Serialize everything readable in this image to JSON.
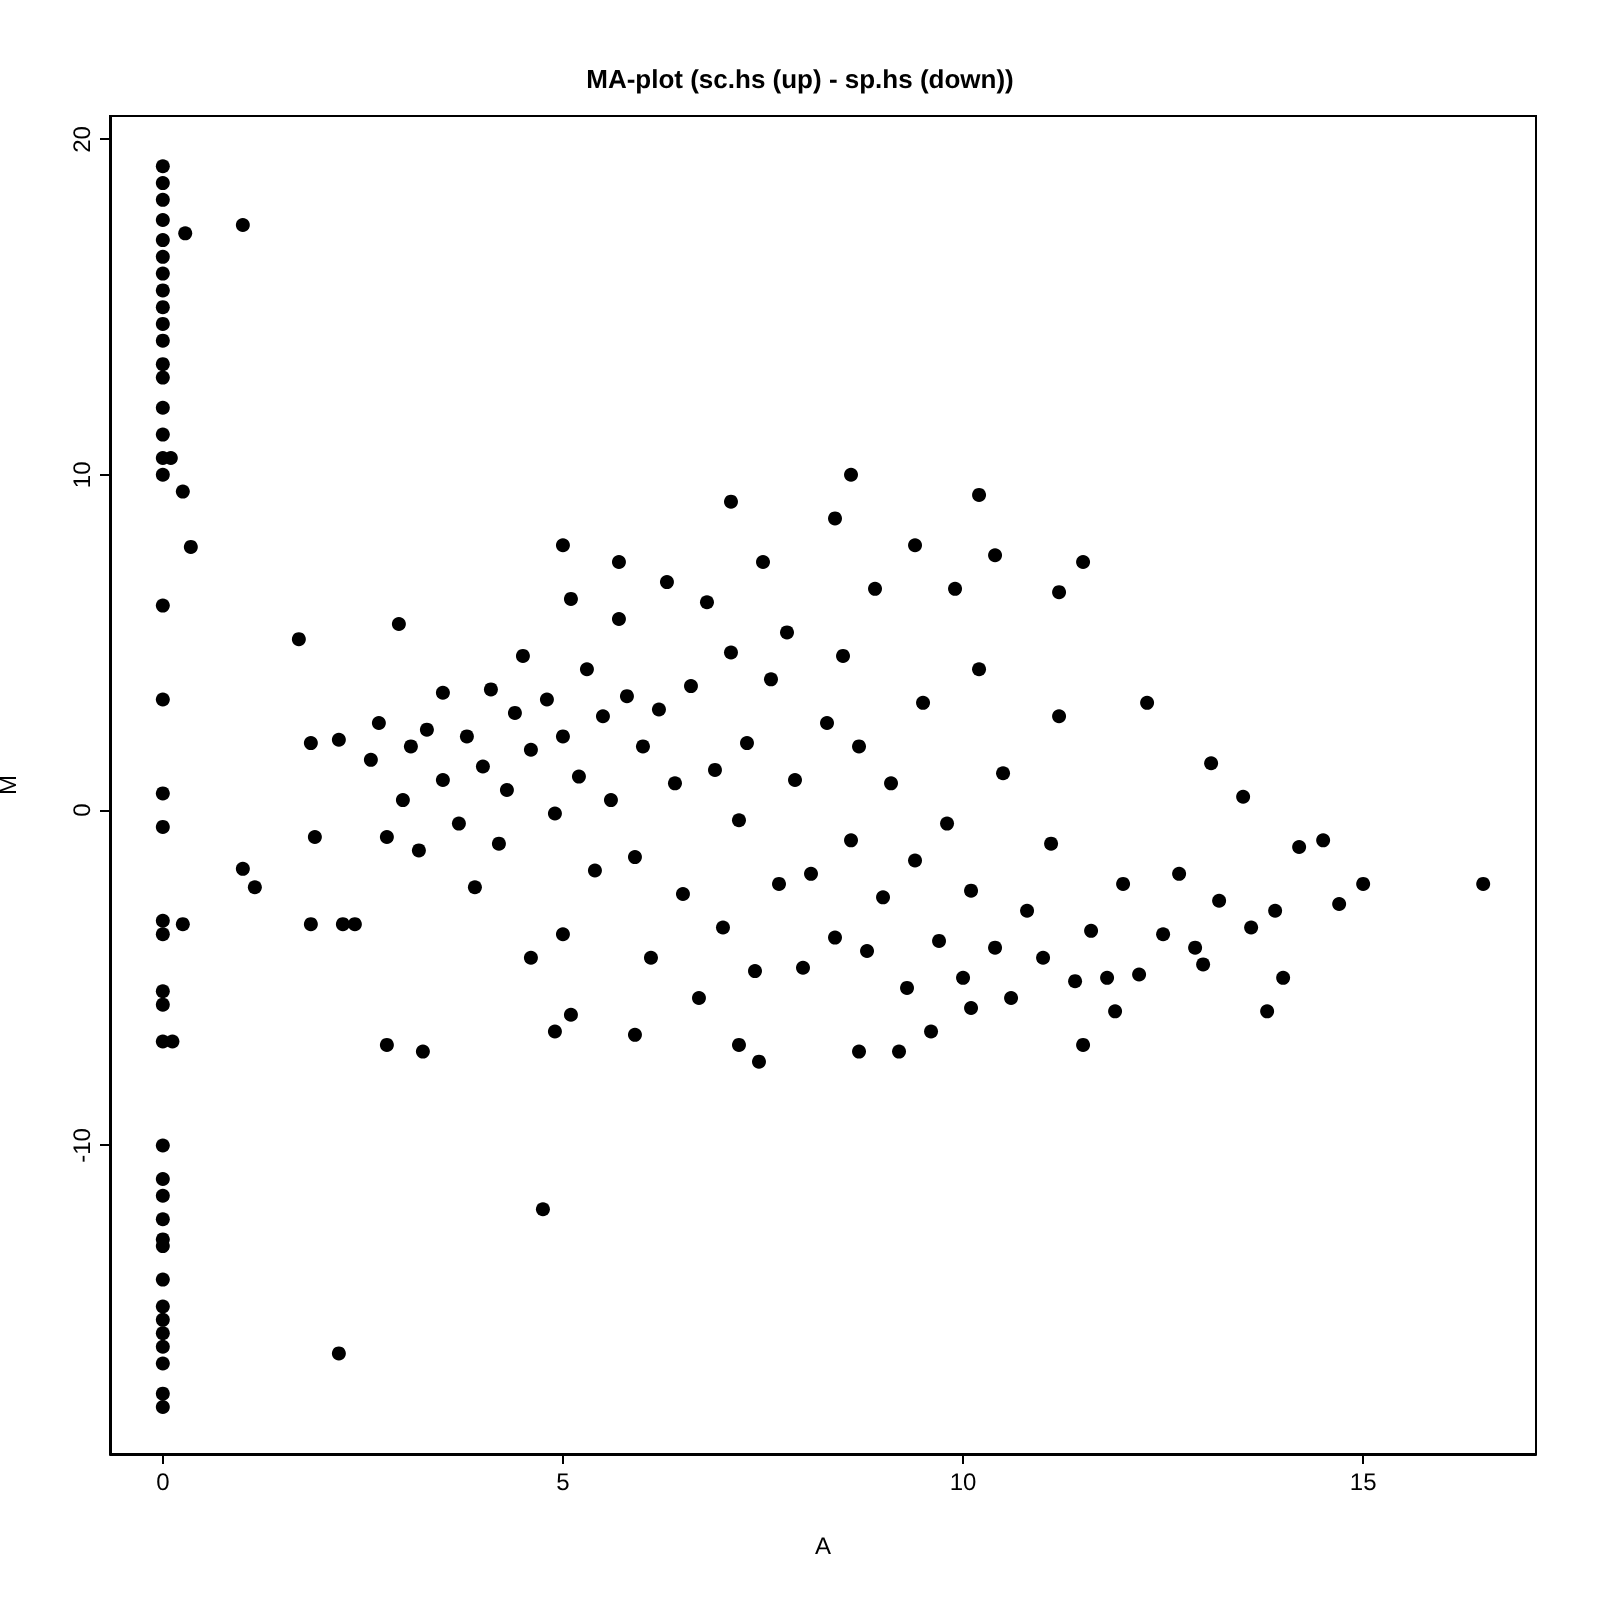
{
  "chart_data": {
    "type": "scatter",
    "title": "MA-plot (sc.hs (up) - sp.hs (down))",
    "xlabel": "A",
    "ylabel": "M",
    "xlim": [
      -0.66,
      17.16
    ],
    "ylim": [
      -19.2,
      20.7
    ],
    "xticks": [
      0,
      5,
      10,
      15
    ],
    "yticks": [
      -10,
      0,
      10,
      20
    ],
    "grid": false,
    "marker": "circle",
    "series": [
      {
        "color": "#000000",
        "x": [
          0,
          0,
          0,
          0,
          0,
          0,
          0,
          0,
          0,
          0,
          0,
          0,
          0,
          0,
          0,
          0,
          0,
          0,
          0,
          0,
          0,
          0,
          0,
          0,
          0,
          0,
          0,
          0,
          0,
          0,
          0,
          0,
          0,
          0,
          0,
          0,
          0,
          0,
          0,
          0,
          0.28,
          1.0,
          0.25,
          0.35,
          0.1,
          0.25,
          0.12,
          1.0,
          1.15,
          1.7,
          1.85,
          1.9,
          1.85,
          2.2,
          2.25,
          2.4,
          2.2,
          2.95,
          2.8,
          3.25,
          4.75,
          16.5,
          15.0,
          14.7,
          14.5,
          14.2,
          13.9,
          14.0,
          13.8,
          13.5,
          13.1,
          13.0,
          12.3,
          11.9,
          11.5,
          11.5,
          11.2,
          10.2,
          8.6,
          7.1,
          8.4,
          9.4,
          10.4,
          5.0,
          5.7,
          7.5,
          7.45,
          7.2,
          8.7,
          9.2,
          9.6,
          10.1,
          5.9,
          4.9,
          5.1,
          2.6,
          2.7,
          2.8,
          3.0,
          3.1,
          3.2,
          3.3,
          3.5,
          3.5,
          3.7,
          3.8,
          3.9,
          4.0,
          4.1,
          4.2,
          4.3,
          4.4,
          4.5,
          4.6,
          4.6,
          4.8,
          4.9,
          5.0,
          5.0,
          5.1,
          5.2,
          5.3,
          5.4,
          5.5,
          5.6,
          5.7,
          5.8,
          5.9,
          6.0,
          6.1,
          6.2,
          6.3,
          6.4,
          6.5,
          6.6,
          6.7,
          6.8,
          6.9,
          7.0,
          7.1,
          7.2,
          7.3,
          7.4,
          7.6,
          7.7,
          7.8,
          7.9,
          8.0,
          8.1,
          8.3,
          8.4,
          8.5,
          8.6,
          8.7,
          8.8,
          8.9,
          9.0,
          9.1,
          9.3,
          9.4,
          9.5,
          9.7,
          9.8,
          9.9,
          10.0,
          10.1,
          10.2,
          10.4,
          10.5,
          10.6,
          10.8,
          11.0,
          11.1,
          11.2,
          11.4,
          11.6,
          11.8,
          12.0,
          12.2,
          12.5,
          12.7,
          12.9,
          13.2,
          13.6
        ],
        "values": [
          19.2,
          18.7,
          18.2,
          17.6,
          17.0,
          16.5,
          16.0,
          15.5,
          15.0,
          14.5,
          14.0,
          13.3,
          12.9,
          12.0,
          11.2,
          10.5,
          10.0,
          6.1,
          3.3,
          0.5,
          -0.5,
          -3.3,
          -3.7,
          -5.4,
          -5.8,
          -6.9,
          -10.0,
          -11.0,
          -11.5,
          -12.2,
          -12.8,
          -13.0,
          -14.0,
          -14.8,
          -15.2,
          -15.6,
          -16.0,
          -16.5,
          -17.4,
          -17.8,
          17.2,
          17.45,
          9.5,
          7.85,
          10.5,
          -3.4,
          -6.9,
          -1.75,
          -2.3,
          5.1,
          2.0,
          -0.8,
          -3.4,
          2.1,
          -3.4,
          -3.4,
          -16.2,
          5.55,
          -7.0,
          -7.2,
          -11.9,
          -2.2,
          -2.2,
          -2.8,
          -0.9,
          -1.1,
          -3.0,
          -5.0,
          -6.0,
          0.4,
          1.4,
          -4.6,
          3.2,
          -6.0,
          -7.0,
          7.4,
          6.5,
          9.4,
          10.0,
          9.2,
          8.7,
          7.9,
          7.6,
          7.9,
          7.4,
          7.4,
          -7.5,
          -7.0,
          -7.2,
          -7.2,
          -6.6,
          -5.9,
          -6.7,
          -6.6,
          -6.1,
          1.5,
          2.6,
          -0.8,
          0.3,
          1.9,
          -1.2,
          2.4,
          0.9,
          3.5,
          -0.4,
          2.2,
          -2.3,
          1.3,
          3.6,
          -1.0,
          0.6,
          2.9,
          4.6,
          -4.4,
          1.8,
          3.3,
          -0.1,
          2.2,
          -3.7,
          6.3,
          1.0,
          4.2,
          -1.8,
          2.8,
          0.3,
          5.7,
          3.4,
          -1.4,
          1.9,
          -4.4,
          3.0,
          6.8,
          0.8,
          -2.5,
          3.7,
          -5.6,
          6.2,
          1.2,
          -3.5,
          4.7,
          -0.3,
          2.0,
          -4.8,
          3.9,
          -2.2,
          5.3,
          0.9,
          -4.7,
          -1.9,
          2.6,
          -3.8,
          4.6,
          -0.9,
          1.9,
          -4.2,
          6.6,
          -2.6,
          0.8,
          -5.3,
          -1.5,
          3.2,
          -3.9,
          -0.4,
          6.6,
          -5.0,
          -2.4,
          4.2,
          -4.1,
          1.1,
          -5.6,
          -3.0,
          -4.4,
          -1.0,
          2.8,
          -5.1,
          -3.6,
          -5.0,
          -2.2,
          -4.9,
          -3.7,
          -1.9,
          -4.1,
          -2.7,
          -3.5
        ]
      }
    ]
  }
}
